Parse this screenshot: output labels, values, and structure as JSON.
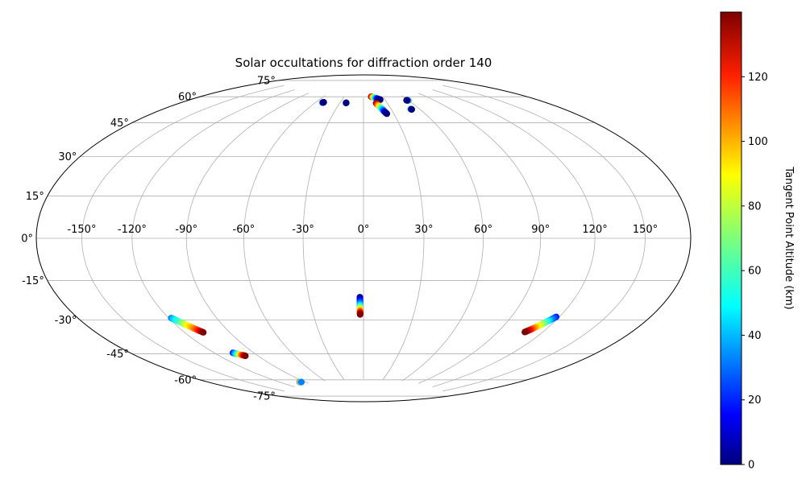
{
  "chart_data": {
    "type": "scatter",
    "projection": "hammer",
    "title": "Solar occultations for diffraction order 140",
    "x_ticks": [
      "-150°",
      "-120°",
      "-90°",
      "-60°",
      "-30°",
      "0°",
      "30°",
      "60°",
      "90°",
      "120°",
      "150°"
    ],
    "y_ticks": [
      "75°",
      "60°",
      "45°",
      "30°",
      "15°",
      "0°",
      "-15°",
      "-30°",
      "-45°",
      "-60°",
      "-75°"
    ],
    "x_tick_values": [
      -150,
      -120,
      -90,
      -60,
      -30,
      0,
      30,
      60,
      90,
      120,
      150
    ],
    "y_tick_values": [
      75,
      60,
      45,
      30,
      15,
      0,
      -15,
      -30,
      -45,
      -60,
      -75
    ],
    "xlim": [
      -180,
      180
    ],
    "ylim": [
      -90,
      90
    ],
    "grid": true,
    "colorbar": {
      "label": "Tangent Point Altitude (km)",
      "colormap": "jet",
      "range": [
        0,
        140
      ],
      "ticks": [
        "0",
        "20",
        "40",
        "60",
        "80",
        "100",
        "120"
      ],
      "tick_values": [
        0,
        20,
        40,
        60,
        80,
        100,
        120
      ]
    },
    "series": [
      {
        "points": [
          [
            -52,
            70.8,
            100
          ],
          [
            -51.5,
            70.9,
            40
          ],
          [
            -51,
            71.0,
            5
          ],
          [
            -50.5,
            71.1,
            0
          ]
        ]
      },
      {
        "points": [
          [
            -22.5,
            71.4,
            100
          ],
          [
            -22.2,
            71.5,
            40
          ],
          [
            -22,
            71.6,
            0
          ]
        ]
      },
      {
        "points": [
          [
            12,
            75.5,
            140
          ],
          [
            14,
            75.3,
            110
          ],
          [
            16,
            75.0,
            80
          ],
          [
            18,
            74.6,
            50
          ],
          [
            20,
            74.2,
            25
          ],
          [
            22,
            73.8,
            5
          ],
          [
            23.5,
            73.5,
            0
          ]
        ]
      },
      {
        "points": [
          [
            16,
            71.5,
            140
          ],
          [
            17.5,
            70.3,
            110
          ],
          [
            19,
            69.0,
            80
          ],
          [
            20.5,
            67.7,
            50
          ],
          [
            21.5,
            66.5,
            25
          ],
          [
            22.5,
            65.5,
            5
          ],
          [
            23.2,
            65.0,
            0
          ]
        ]
      },
      {
        "points": [
          [
            50.5,
            67.0,
            100
          ],
          [
            51,
            66.9,
            40
          ],
          [
            51.5,
            66.7,
            0
          ]
        ]
      },
      {
        "points": [
          [
            60,
            71.8,
            100
          ],
          [
            59,
            71.9,
            40
          ],
          [
            57.5,
            72.1,
            0
          ]
        ]
      },
      {
        "points": [
          [
            -2,
            -29.5,
            0
          ],
          [
            -2,
            -31,
            15
          ],
          [
            -2,
            -32.5,
            30
          ],
          [
            -2,
            -34,
            50
          ],
          [
            -2,
            -35.5,
            80
          ],
          [
            -2,
            -37,
            110
          ],
          [
            -2,
            -38.5,
            140
          ]
        ]
      },
      {
        "points": [
          [
            -118.5,
            -35.5,
            35
          ],
          [
            -117,
            -36.5,
            50
          ],
          [
            -115,
            -38,
            65
          ],
          [
            -113,
            -39.5,
            85
          ],
          [
            -111,
            -41,
            100
          ],
          [
            -109,
            -42.5,
            120
          ],
          [
            -107.5,
            -43.5,
            140
          ]
        ]
      },
      {
        "points": [
          [
            -106,
            -54.5,
            20
          ],
          [
            -104,
            -55.5,
            60
          ],
          [
            -102,
            -56,
            100
          ],
          [
            -100,
            -56.8,
            140
          ]
        ]
      },
      {
        "points": [
          [
            -97,
            -73.5,
            140
          ],
          [
            -96,
            -73.6,
            70
          ],
          [
            -95,
            -73.7,
            35
          ]
        ]
      },
      {
        "points": [
          [
            118,
            -35.0,
            20
          ],
          [
            116.5,
            -36.3,
            35
          ],
          [
            115,
            -37.6,
            55
          ],
          [
            113.5,
            -39.0,
            75
          ],
          [
            112,
            -40.2,
            90
          ],
          [
            110.5,
            -41.5,
            110
          ],
          [
            109,
            -42.6,
            130
          ],
          [
            108,
            -43.3,
            140
          ]
        ]
      }
    ]
  }
}
